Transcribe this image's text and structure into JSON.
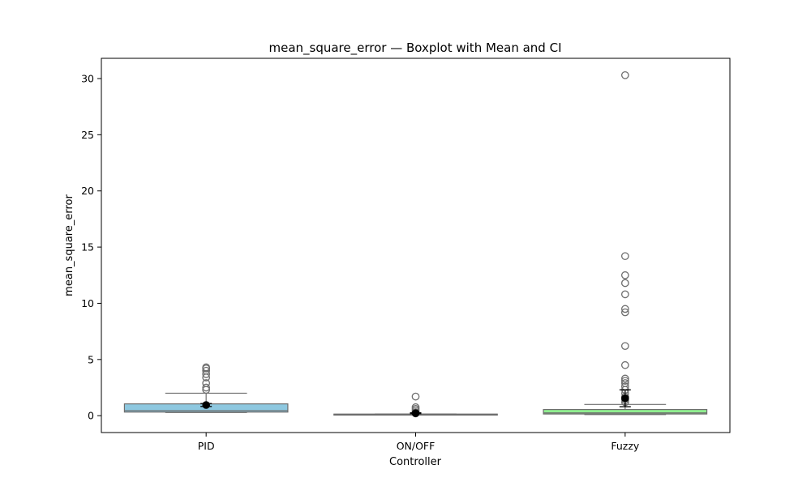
{
  "chart_data": {
    "type": "box",
    "title": "mean_square_error — Boxplot with Mean and CI",
    "xlabel": "Controller",
    "ylabel": "mean_square_error",
    "categories": [
      "PID",
      "ON/OFF",
      "Fuzzy"
    ],
    "ylim": [
      -1.5,
      31.8
    ],
    "yticks": [
      0,
      5,
      10,
      15,
      20,
      25,
      30
    ],
    "grid": false,
    "legend": "none",
    "groups": [
      {
        "name": "PID",
        "color": "#8ec8e0",
        "whisker_low": 0.28,
        "q1": 0.32,
        "median": 0.45,
        "q3": 1.05,
        "whisker_high": 2.0,
        "outliers": [
          2.3,
          2.5,
          2.9,
          3.4,
          3.7,
          4.0,
          4.2,
          4.3
        ],
        "mean": 0.95,
        "ci": [
          0.82,
          1.08
        ]
      },
      {
        "name": "ON/OFF",
        "color": "#f4a7a7",
        "whisker_low": 0.08,
        "q1": 0.11,
        "median": 0.12,
        "q3": 0.14,
        "whisker_high": 0.15,
        "outliers": [
          0.2,
          0.3,
          0.45,
          0.6,
          0.75,
          1.7
        ],
        "mean": 0.22,
        "ci": [
          0.18,
          0.26
        ]
      },
      {
        "name": "Fuzzy",
        "color": "#90ee90",
        "whisker_low": 0.1,
        "q1": 0.15,
        "median": 0.25,
        "q3": 0.55,
        "whisker_high": 1.0,
        "outliers": [
          1.2,
          1.4,
          1.7,
          2.0,
          2.3,
          2.6,
          2.9,
          3.1,
          3.3,
          4.5,
          6.2,
          9.2,
          9.5,
          10.8,
          11.8,
          12.5,
          14.2,
          30.3
        ],
        "mean": 1.55,
        "ci": [
          0.8,
          2.3
        ]
      }
    ]
  }
}
